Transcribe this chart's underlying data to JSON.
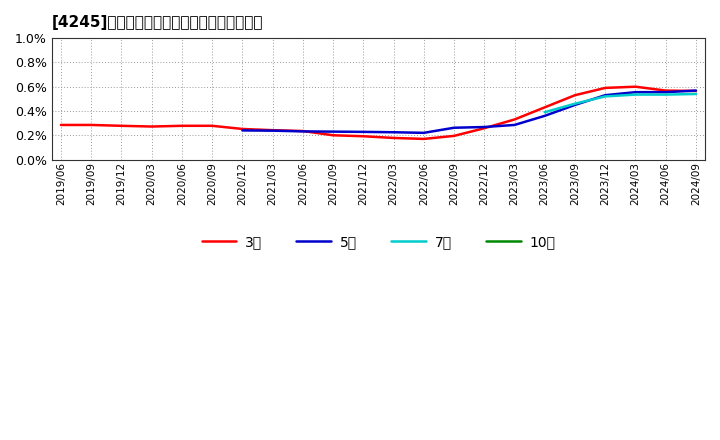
{
  "title": "[4245]　経常利益マージンの標準偏差の推移",
  "ylim": [
    0.0,
    0.01
  ],
  "yticks": [
    0.0,
    0.002,
    0.004,
    0.006,
    0.008,
    0.01
  ],
  "ytick_labels": [
    "0.0%",
    "0.2%",
    "0.4%",
    "0.6%",
    "0.8%",
    "1.0%"
  ],
  "background_color": "#ffffff",
  "plot_bg_color": "#ffffff",
  "grid_color": "#999999",
  "legend_entries": [
    "3年",
    "5年",
    "7年",
    "10年"
  ],
  "legend_colors": [
    "#ff0000",
    "#0000cc",
    "#00cccc",
    "#008800"
  ],
  "x_dates": [
    "2019/06",
    "2019/09",
    "2019/12",
    "2020/03",
    "2020/06",
    "2020/09",
    "2020/12",
    "2021/03",
    "2021/06",
    "2021/09",
    "2021/12",
    "2022/03",
    "2022/06",
    "2022/09",
    "2022/12",
    "2023/03",
    "2023/06",
    "2023/09",
    "2023/12",
    "2024/03",
    "2024/06",
    "2024/09"
  ],
  "series_3y": [
    0.00285,
    0.00285,
    0.00278,
    0.00272,
    0.00278,
    0.00278,
    0.00252,
    0.00242,
    0.00235,
    0.002,
    0.00192,
    0.00178,
    0.0017,
    0.00195,
    0.00258,
    0.0033,
    0.0043,
    0.0053,
    0.0059,
    0.006,
    0.00568,
    0.00565
  ],
  "series_5y": [
    null,
    null,
    null,
    null,
    null,
    null,
    0.0024,
    0.00238,
    0.00232,
    0.0023,
    0.00228,
    0.00225,
    0.0022,
    0.00262,
    0.00268,
    0.00285,
    0.0036,
    0.0045,
    0.0053,
    0.00555,
    0.00555,
    0.00568
  ],
  "series_7y": [
    null,
    null,
    null,
    null,
    null,
    null,
    null,
    null,
    null,
    null,
    null,
    null,
    null,
    null,
    null,
    null,
    0.0039,
    0.0046,
    0.0052,
    0.00535,
    0.00535,
    0.0054
  ],
  "series_10y": [
    null,
    null,
    null,
    null,
    null,
    null,
    null,
    null,
    null,
    null,
    null,
    null,
    null,
    null,
    null,
    null,
    null,
    null,
    null,
    null,
    null,
    null
  ]
}
